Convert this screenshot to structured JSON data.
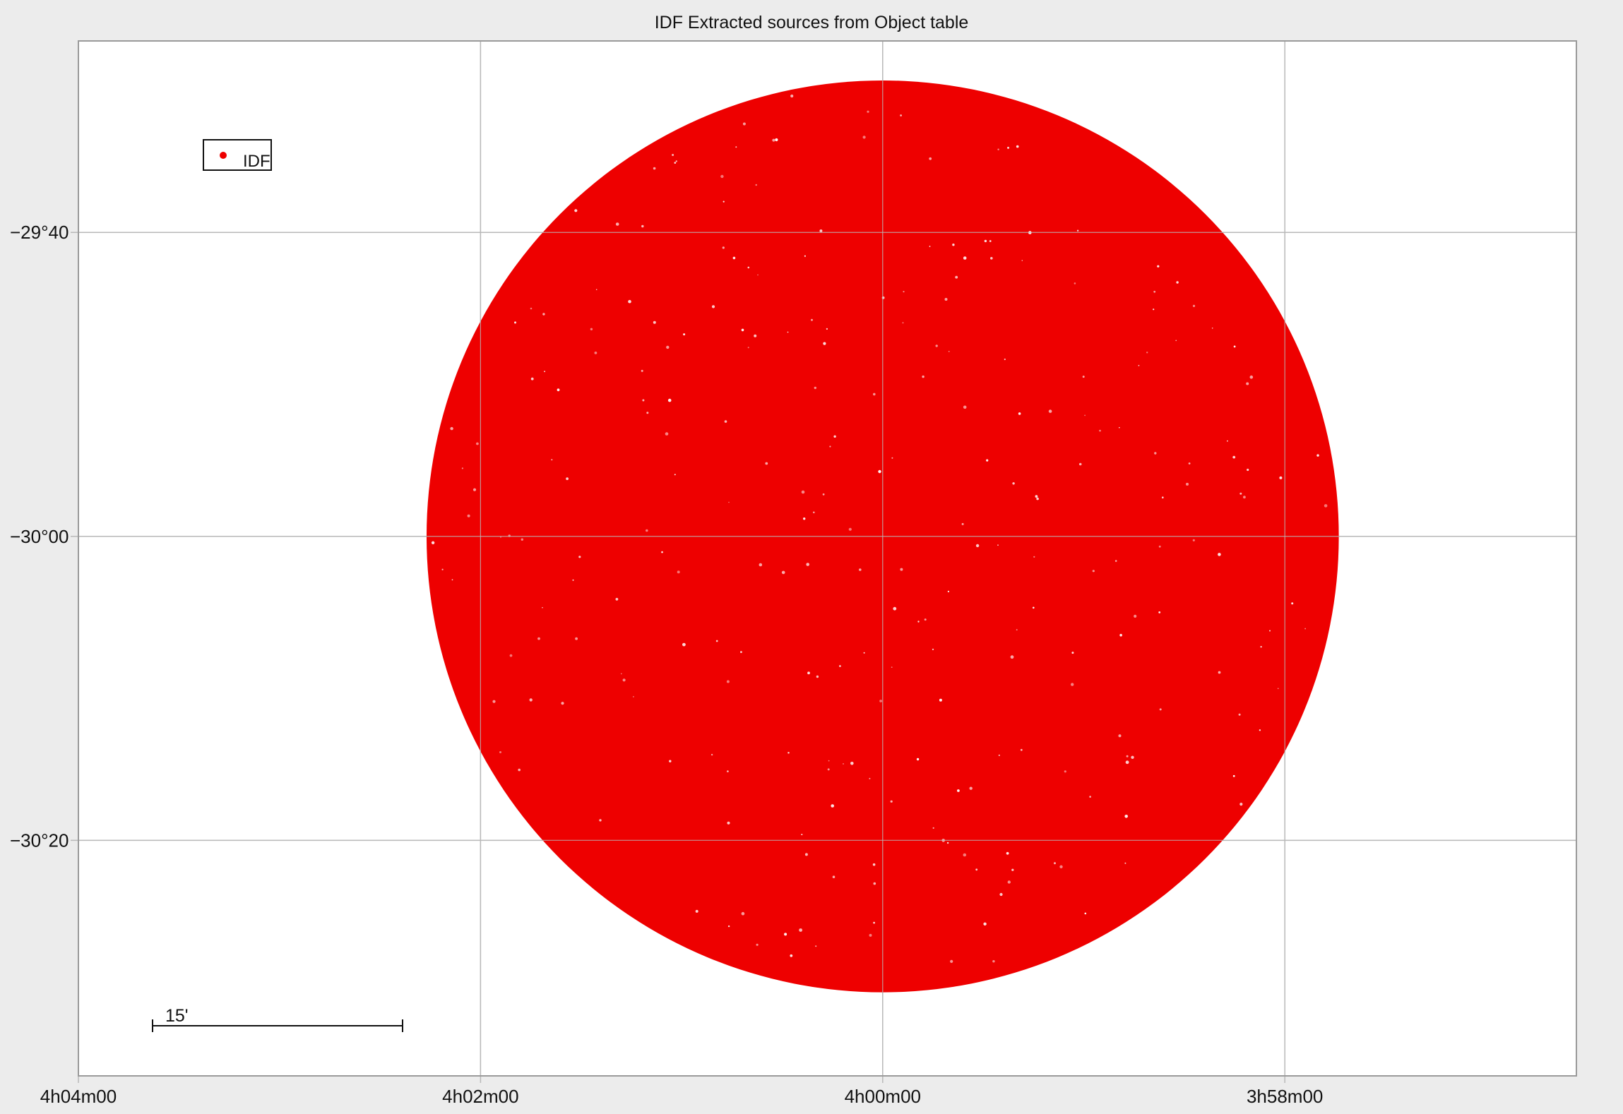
{
  "window": {
    "background": "#ececec"
  },
  "chart_data": {
    "type": "scatter",
    "title": "IDF Extracted sources from Object table",
    "xlabel": "",
    "ylabel": "",
    "x_axis": {
      "quantity": "right_ascension",
      "direction": "decreasing_to_right",
      "range_minutes_of_time": [
        -244.0,
        -236.55
      ],
      "ticks": [
        {
          "label": "4h04m00",
          "value": 244
        },
        {
          "label": "4h02m00",
          "value": 242
        },
        {
          "label": "4h00m00",
          "value": 240
        },
        {
          "label": "3h58m00",
          "value": 238
        }
      ]
    },
    "y_axis": {
      "quantity": "declination",
      "range_arcmin": [
        -1835.5,
        -1767.4
      ],
      "ticks": [
        {
          "label": "−29°40",
          "value": -1780
        },
        {
          "label": "−30°00",
          "value": -1800
        },
        {
          "label": "−30°20",
          "value": -1820
        }
      ]
    },
    "grid": true,
    "legend": {
      "placement": "top-left",
      "entries": [
        {
          "name": "IDF",
          "color": "#ee0000",
          "marker": "dot"
        }
      ]
    },
    "series": [
      {
        "name": "IDF",
        "color": "#ee0000",
        "description_shape": "filled circular field",
        "center": {
          "ra_min": 240.0,
          "dec_arcmin": -1800.0
        },
        "radius_arcmin": 30.0
      }
    ],
    "scale_bar": {
      "label": "15'",
      "length_arcmin": 15
    },
    "colors": {
      "plot_background": "#ffffff",
      "grid": "#b9b9b9",
      "frame": "#9a9a9a",
      "points": "#ee0000"
    }
  }
}
